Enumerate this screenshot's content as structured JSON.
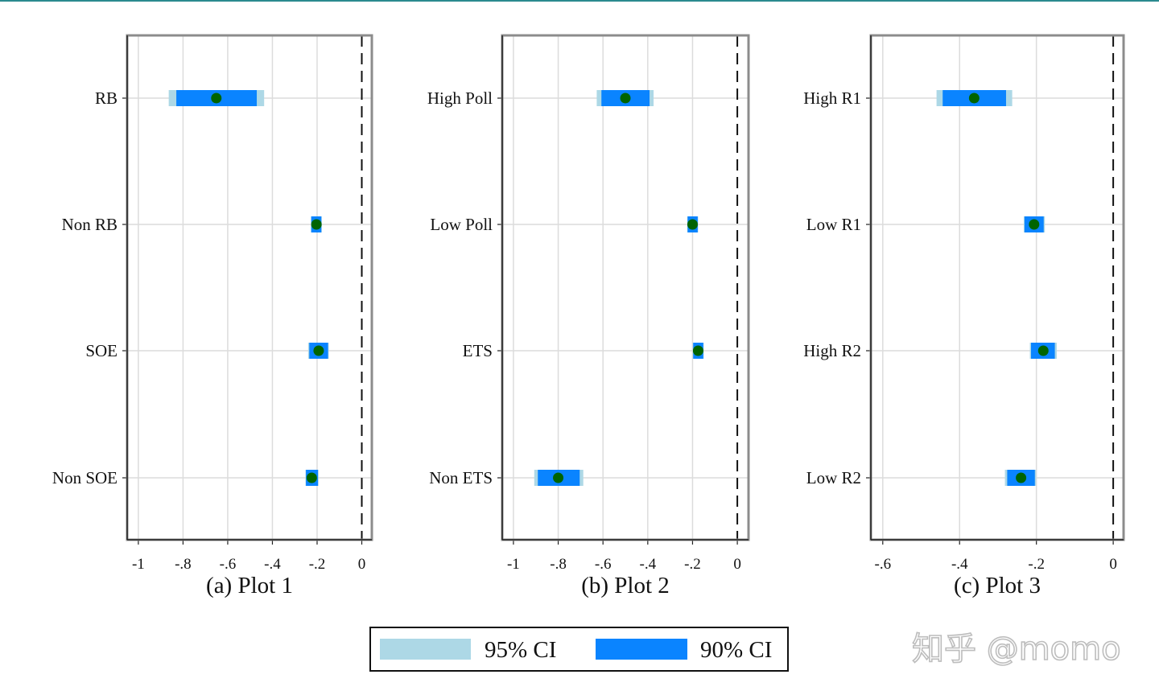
{
  "chart_data": [
    {
      "type": "coefficient-plot",
      "caption": "(a) Plot 1",
      "xlim": [
        -1.05,
        0.045
      ],
      "xticks": [
        -1,
        -0.8,
        -0.6,
        -0.4,
        -0.2,
        0
      ],
      "xtick_labels": [
        "-1",
        "-.8",
        "-.6",
        "-.4",
        "-.2",
        "0"
      ],
      "reference_line": 0,
      "grid": true,
      "categories": [
        "RB",
        "Non RB",
        "SOE",
        "Non SOE"
      ],
      "estimates": [
        -0.651,
        -0.203,
        -0.193,
        -0.224
      ],
      "ci95": [
        [
          -0.864,
          -0.437
        ],
        [
          -0.228,
          -0.179
        ],
        [
          -0.24,
          -0.148
        ],
        [
          -0.252,
          -0.194
        ]
      ],
      "ci90": [
        [
          -0.83,
          -0.47
        ],
        [
          -0.226,
          -0.181
        ],
        [
          -0.235,
          -0.151
        ],
        [
          -0.25,
          -0.196
        ]
      ]
    },
    {
      "type": "coefficient-plot",
      "caption": "(b) Plot 2",
      "xlim": [
        -1.05,
        0.05
      ],
      "xticks": [
        -1,
        -0.8,
        -0.6,
        -0.4,
        -0.2,
        0
      ],
      "xtick_labels": [
        "-1",
        "-.8",
        "-.6",
        "-.4",
        "-.2",
        "0"
      ],
      "reference_line": 0,
      "grid": true,
      "categories": [
        "High Poll",
        "Low Poll",
        "ETS",
        "Non ETS"
      ],
      "estimates": [
        -0.5,
        -0.2,
        -0.175,
        -0.8
      ],
      "ci95": [
        [
          -0.628,
          -0.374
        ],
        [
          -0.224,
          -0.175
        ],
        [
          -0.199,
          -0.15
        ],
        [
          -0.907,
          -0.688
        ]
      ],
      "ci90": [
        [
          -0.607,
          -0.392
        ],
        [
          -0.222,
          -0.177
        ],
        [
          -0.197,
          -0.152
        ],
        [
          -0.891,
          -0.704
        ]
      ]
    },
    {
      "type": "coefficient-plot",
      "caption": "(c) Plot 3",
      "xlim": [
        -0.631,
        0.027
      ],
      "xticks": [
        -0.6,
        -0.4,
        -0.2,
        0
      ],
      "xtick_labels": [
        "-.6",
        "-.4",
        "-.2",
        "0"
      ],
      "reference_line": 0,
      "grid": true,
      "categories": [
        "High R1",
        "Low R1",
        "High R2",
        "Low R2"
      ],
      "estimates": [
        -0.362,
        -0.206,
        -0.182,
        -0.24
      ],
      "ci95": [
        [
          -0.46,
          -0.263
        ],
        [
          -0.233,
          -0.178
        ],
        [
          -0.217,
          -0.147
        ],
        [
          -0.282,
          -0.201
        ]
      ],
      "ci90": [
        [
          -0.444,
          -0.279
        ],
        [
          -0.231,
          -0.181
        ],
        [
          -0.214,
          -0.152
        ],
        [
          -0.276,
          -0.204
        ]
      ]
    }
  ],
  "legend": {
    "placement": "bottom-center",
    "items": [
      {
        "label": "95% CI",
        "color": "#add8e6"
      },
      {
        "label": "90% CI",
        "color": "#0a84ff"
      }
    ]
  },
  "colors": {
    "point": "#006400",
    "ci95": "#add8e6",
    "ci90": "#0a84ff",
    "grid": "#dcdcdc",
    "frame": "#8c8c8c"
  },
  "watermark": "知乎 @momo"
}
